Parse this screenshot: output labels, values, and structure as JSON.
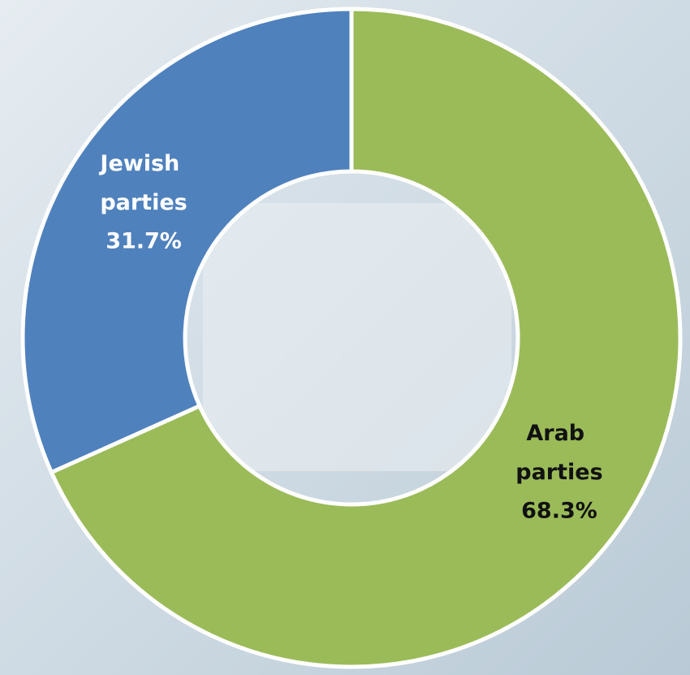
{
  "chart_data": {
    "type": "donut",
    "categories": [
      "Arab parties",
      "Jewish parties"
    ],
    "values": [
      68.3,
      31.7
    ],
    "value_labels": [
      "68.3%",
      "31.7%"
    ],
    "colors": [
      "#9bbb59",
      "#4f81bd"
    ],
    "label_colors": [
      "#111111",
      "#ffffff"
    ]
  }
}
